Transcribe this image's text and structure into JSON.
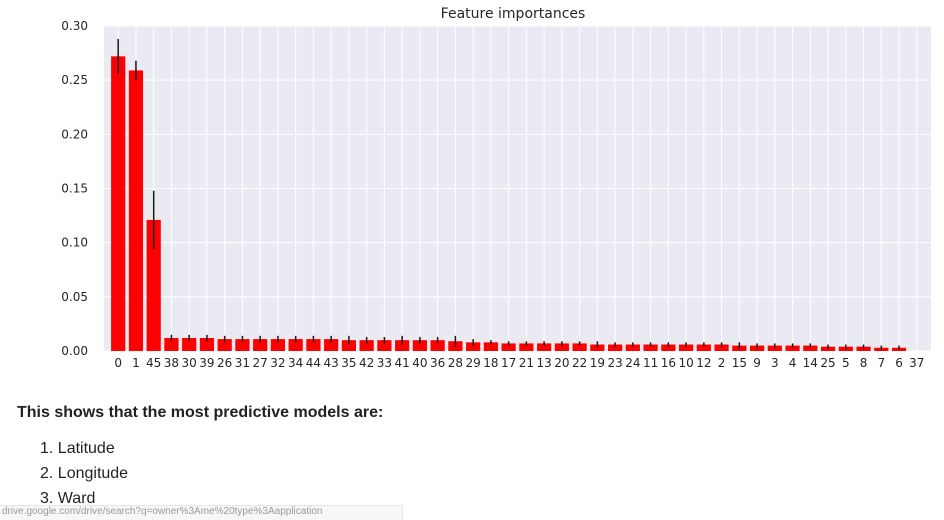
{
  "chart_data": {
    "type": "bar",
    "title": "Feature importances",
    "xlabel": "",
    "ylabel": "",
    "ylim": [
      0,
      0.3
    ],
    "yticks": [
      "0.00",
      "0.05",
      "0.10",
      "0.15",
      "0.20",
      "0.25",
      "0.30"
    ],
    "grid": true,
    "categories": [
      "0",
      "1",
      "45",
      "38",
      "30",
      "39",
      "26",
      "31",
      "27",
      "32",
      "34",
      "44",
      "43",
      "35",
      "42",
      "33",
      "41",
      "40",
      "36",
      "28",
      "29",
      "18",
      "17",
      "21",
      "13",
      "20",
      "22",
      "19",
      "23",
      "24",
      "11",
      "16",
      "10",
      "12",
      "2",
      "15",
      "9",
      "3",
      "4",
      "14",
      "25",
      "5",
      "8",
      "7",
      "6",
      "37"
    ],
    "values": [
      0.272,
      0.259,
      0.121,
      0.012,
      0.012,
      0.012,
      0.011,
      0.011,
      0.011,
      0.011,
      0.011,
      0.011,
      0.011,
      0.01,
      0.01,
      0.01,
      0.01,
      0.01,
      0.01,
      0.009,
      0.008,
      0.008,
      0.007,
      0.007,
      0.007,
      0.007,
      0.007,
      0.006,
      0.006,
      0.006,
      0.006,
      0.006,
      0.006,
      0.006,
      0.006,
      0.005,
      0.005,
      0.005,
      0.005,
      0.005,
      0.004,
      0.004,
      0.004,
      0.003,
      0.003,
      0.0
    ],
    "errors": [
      0.016,
      0.009,
      0.027,
      0.003,
      0.003,
      0.003,
      0.003,
      0.003,
      0.003,
      0.003,
      0.003,
      0.003,
      0.003,
      0.004,
      0.003,
      0.003,
      0.004,
      0.003,
      0.003,
      0.005,
      0.003,
      0.002,
      0.002,
      0.002,
      0.002,
      0.002,
      0.002,
      0.003,
      0.002,
      0.002,
      0.002,
      0.002,
      0.002,
      0.002,
      0.002,
      0.003,
      0.002,
      0.002,
      0.002,
      0.002,
      0.002,
      0.002,
      0.002,
      0.002,
      0.002,
      0.0
    ],
    "colors": {
      "bar": "#ff0000",
      "error": "#1a1a1a",
      "background": "#eaeaf2",
      "grid": "#ffffff"
    }
  },
  "text": {
    "heading": "This shows that the most predictive models are:",
    "models": [
      "1. Latitude",
      "2. Longitude",
      "3. Ward"
    ],
    "status_url": "drive.google.com/drive/search?q=owner%3Ame%20type%3Aapplication"
  }
}
